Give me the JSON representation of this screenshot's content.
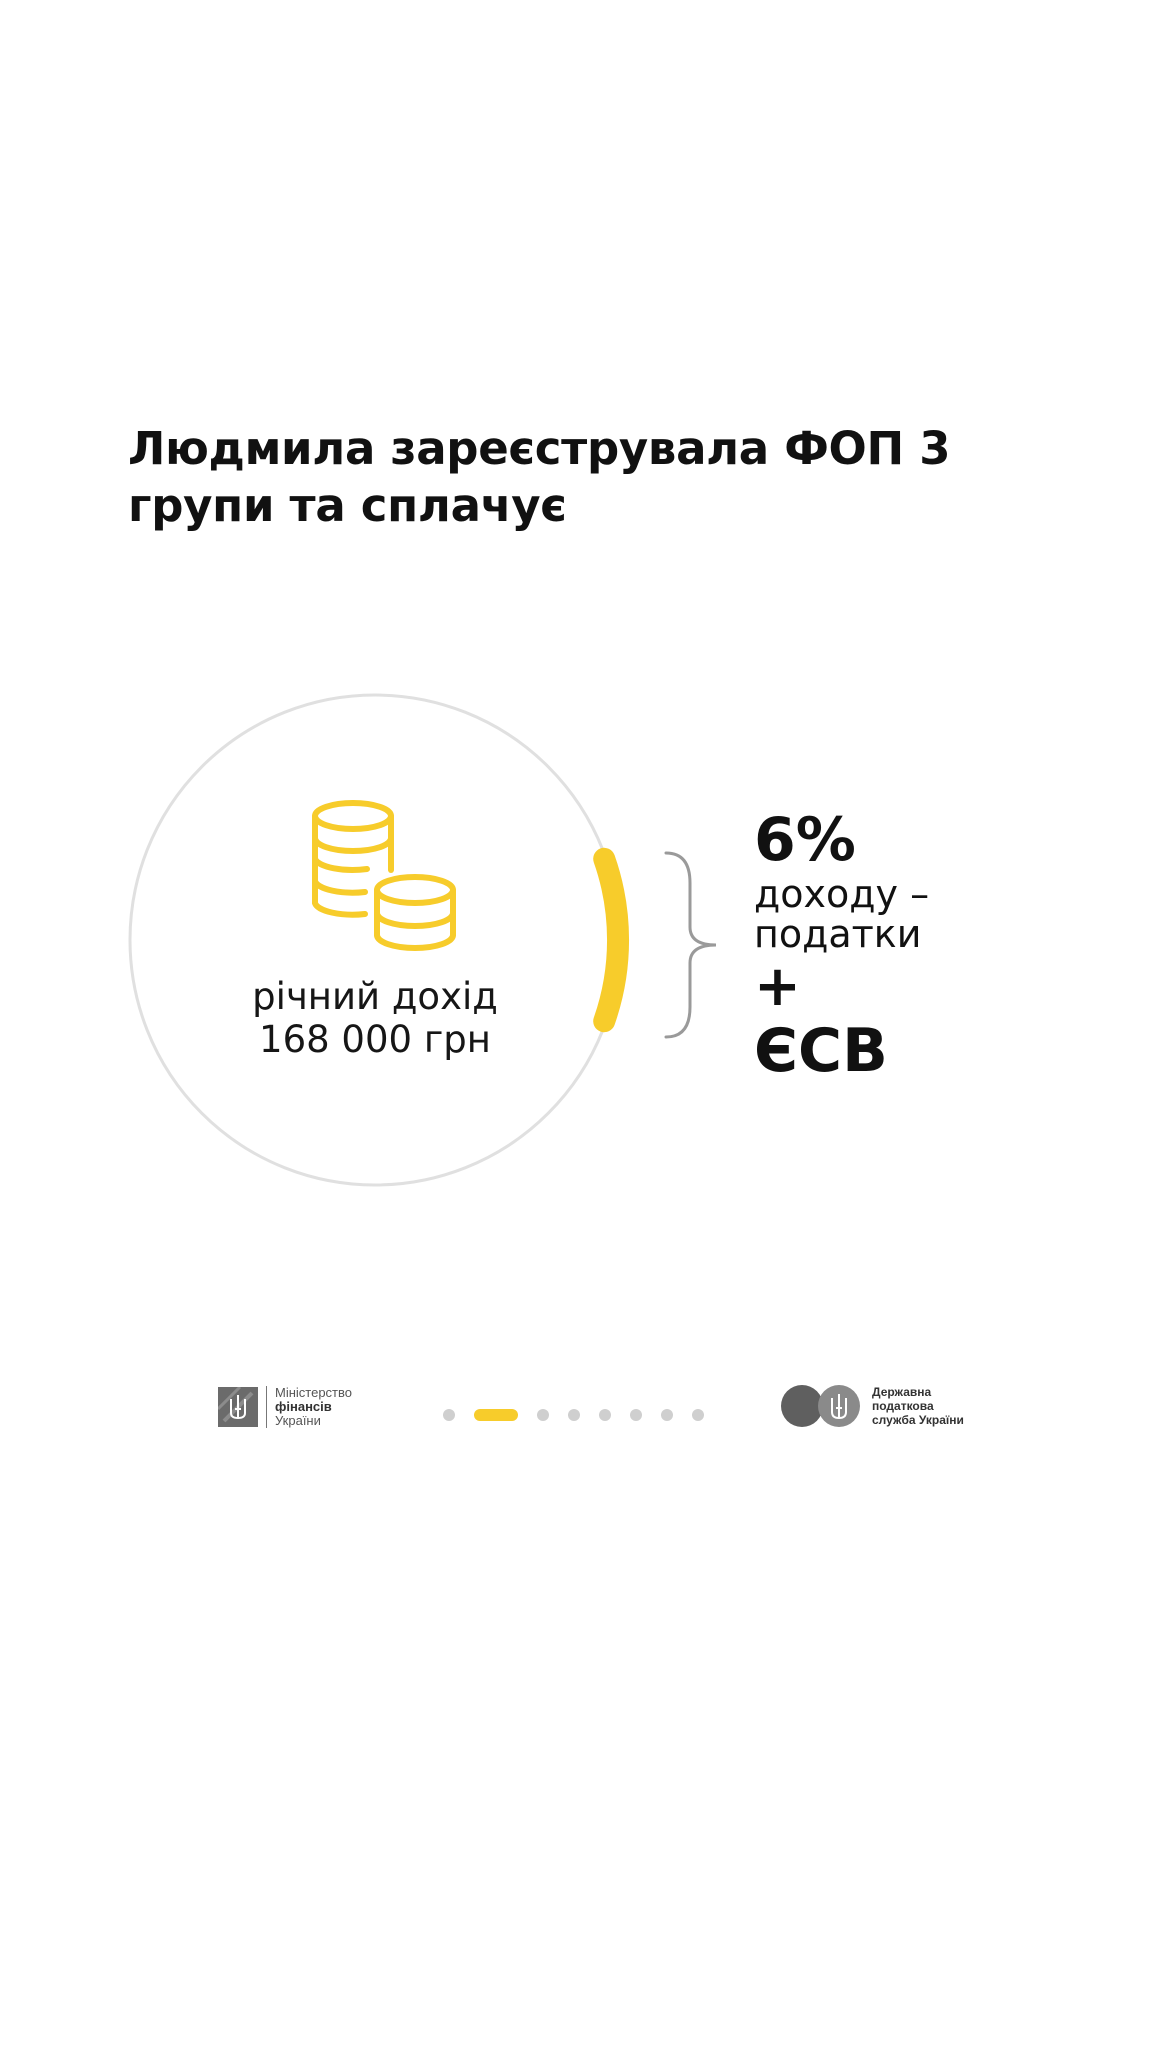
{
  "heading": {
    "line1": "Людмила зареєструвала ФОП 3",
    "line2": "групи та сплачує"
  },
  "income": {
    "label": "річний дохід",
    "amount": "168 000 грн"
  },
  "result": {
    "rate": "6%",
    "rate_text_line1": "доходу –",
    "rate_text_line2": "податки",
    "plus": "+",
    "esv": "ЄСВ"
  },
  "footer": {
    "ministry": {
      "line1": "Міністерство",
      "line2": "фінансів",
      "line3": "України"
    },
    "tax_service": {
      "line1": "Державна",
      "line2": "податкова",
      "line3": "служба України"
    },
    "pagination": {
      "total": 8,
      "current": 2
    }
  },
  "colors": {
    "accent": "#f7cc2b",
    "circle_outline": "#e0e0e0",
    "brace": "#9a9a9a",
    "dot_inactive": "#cfcfcf",
    "logo_gray": "#6b6b6b"
  },
  "icons": {
    "main": "coins-icon"
  }
}
